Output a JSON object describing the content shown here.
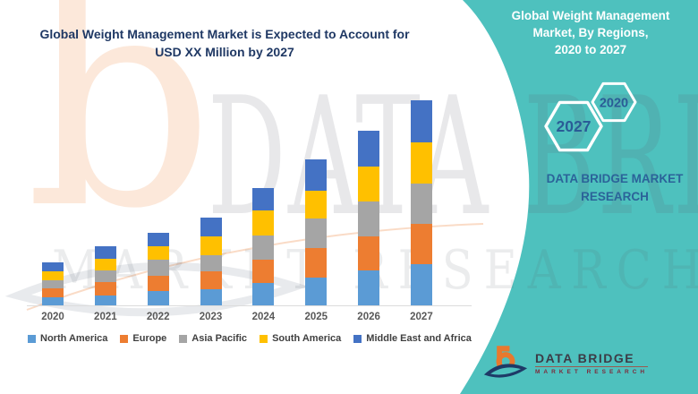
{
  "left_title": {
    "line1": "Global Weight Management Market is Expected to Account for",
    "line2": "USD XX Million by 2027"
  },
  "panel": {
    "title_line1": "Global Weight Management",
    "title_line2": "Market, By Regions,",
    "title_line3": "2020 to 2027",
    "hexagons": [
      {
        "label": "2027"
      },
      {
        "label": "2020"
      }
    ],
    "brand_line1": "DATA BRIDGE MARKET",
    "brand_line2": "RESEARCH",
    "accent_color": "#4EC1BE",
    "year_text_color": "#2A5C96"
  },
  "logo": {
    "name": "DATA BRIDGE",
    "subtitle": "MARKET RESEARCH",
    "orange": "#E8792E",
    "navy": "#1E3A67"
  },
  "watermark": {
    "letter": "b",
    "line1": "DATA BRIDGE",
    "line2": "MARKET RESEARCH"
  },
  "chart_data": {
    "type": "bar",
    "stacked": true,
    "title": "Global Weight Management Market is Expected to Account for USD XX Million by 2027",
    "xlabel": "",
    "ylabel": "",
    "value_units": "relative units (y-axis unlabeled in source)",
    "ylim": [
      0,
      240
    ],
    "grid": false,
    "legend_position": "bottom",
    "categories": [
      "2020",
      "2021",
      "2022",
      "2023",
      "2024",
      "2025",
      "2026",
      "2027"
    ],
    "series": [
      {
        "name": "North America",
        "color": "#5B9BD5",
        "values": [
          9,
          11,
          16,
          18,
          25,
          31,
          39,
          46
        ]
      },
      {
        "name": "Europe",
        "color": "#ED7D31",
        "values": [
          10,
          15,
          17,
          20,
          26,
          33,
          38,
          45
        ]
      },
      {
        "name": "Asia Pacific",
        "color": "#A5A5A5",
        "values": [
          9,
          13,
          18,
          18,
          27,
          33,
          39,
          45
        ]
      },
      {
        "name": "South America",
        "color": "#FFC000",
        "values": [
          10,
          13,
          15,
          21,
          28,
          31,
          39,
          46
        ]
      },
      {
        "name": "Middle East and Africa",
        "color": "#4472C4",
        "values": [
          10,
          14,
          15,
          21,
          25,
          35,
          40,
          47
        ]
      }
    ],
    "totals": [
      48,
      66,
      81,
      98,
      131,
      163,
      195,
      229
    ]
  }
}
